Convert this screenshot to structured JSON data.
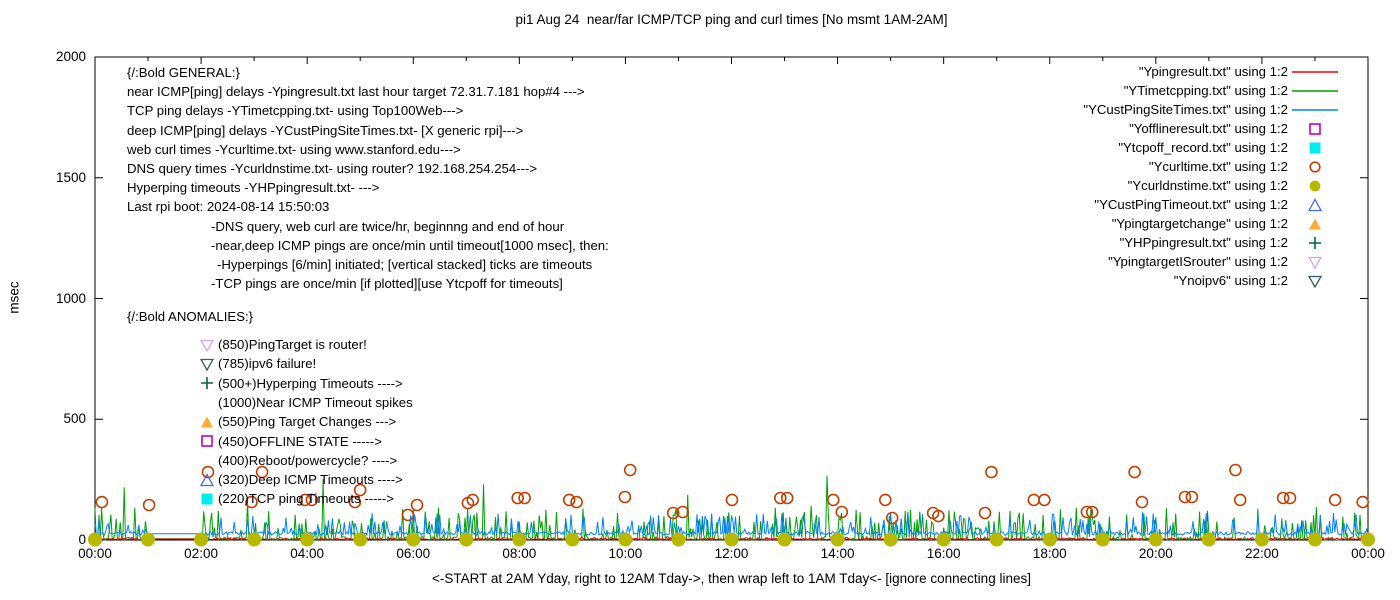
{
  "title": "pi1 Aug 24  near/far ICMP/TCP ping and curl times [No msmt 1AM-2AM]",
  "axes": {
    "y_label": "msec",
    "x_label": "<-START at 2AM Yday, right to 12AM Tday->, then wrap left to 1AM Tday<- [ignore connecting lines]",
    "y_ticks": [
      0,
      500,
      1000,
      1500,
      2000
    ],
    "x_tick_labels": [
      "00:00",
      "02:00",
      "04:00",
      "06:00",
      "08:00",
      "10:00",
      "12:00",
      "14:00",
      "16:00",
      "18:00",
      "20:00",
      "22:00",
      "00:00"
    ],
    "x_hours": 24,
    "y_max": 2000
  },
  "legend": [
    {
      "label": "\"Ypingresult.txt\" using 1:2",
      "marker": "line",
      "color": "#ff0000"
    },
    {
      "label": "\"YTimetcpping.txt\" using 1:2",
      "marker": "line",
      "color": "#00a000"
    },
    {
      "label": "\"YCustPingSiteTimes.txt\" using 1:2",
      "marker": "line",
      "color": "#0080ff"
    },
    {
      "label": "\"Yofflineresult.txt\" using 1:2",
      "marker": "square-open",
      "color": "#c000c0"
    },
    {
      "label": "\"Ytcpoff_record.txt\" using 1:2",
      "marker": "square-filled",
      "color": "#00eeee"
    },
    {
      "label": "\"Ycurltime.txt\" using 1:2",
      "marker": "circle-open",
      "color": "#c04000"
    },
    {
      "label": "\"Ycurldnstime.txt\" using 1:2",
      "marker": "circle-filled",
      "color": "#b8b800"
    },
    {
      "label": "\"YCustPingTimeout.txt\" using 1:2",
      "marker": "tri-up-open",
      "color": "#4169e1"
    },
    {
      "label": "\"Ypingtargetchange\" using 1:2",
      "marker": "tri-up-filled",
      "color": "#ffaa33"
    },
    {
      "label": "\"YHPpingresult.txt\" using 1:2",
      "marker": "plus",
      "color": "#006644"
    },
    {
      "label": "\"YpingtargetISrouter\" using 1:2",
      "marker": "tri-down-open",
      "color": "#cda4f0"
    },
    {
      "label": "\"Ynoipv6\" using 1:2",
      "marker": "tri-down-open",
      "color": "#35566b"
    }
  ],
  "annotations": {
    "general": {
      "lines": [
        {
          "text": "{/:Bold GENERAL:}",
          "indent": 0
        },
        {
          "text": "near ICMP[ping] delays -Ypingresult.txt last hour target 72.31.7.181 hop#4 --->",
          "indent": 0
        },
        {
          "text": "TCP ping delays -YTimetcpping.txt- using Top100Web--->",
          "indent": 0
        },
        {
          "text": "deep ICMP[ping] delays -YCustPingSiteTimes.txt- [X generic rpi]--->",
          "indent": 0
        },
        {
          "text": "web curl times -Ycurltime.txt- using www.stanford.edu--->",
          "indent": 0
        },
        {
          "text": "DNS query times -Ycurldnstime.txt- using router? 192.168.254.254--->",
          "indent": 0
        },
        {
          "text": "Hyperping timeouts -YHPpingresult.txt- --->",
          "indent": 0
        },
        {
          "text": "Last rpi boot: 2024-08-14 15:50:03",
          "indent": 0
        },
        {
          "text": "-DNS query, web curl are twice/hr, beginnng and end of hour",
          "indent": 1
        },
        {
          "text": "-near,deep ICMP pings are once/min until timeout[1000 msec], then:",
          "indent": 1
        },
        {
          "text": "-Hyperpings [6/min] initiated; [vertical stacked] ticks are timeouts",
          "indent": 2
        },
        {
          "text": "-TCP pings are once/min [if plotted][use Ytcpoff for timeouts]",
          "indent": 1
        }
      ]
    },
    "anomalies": {
      "title": "{/:Bold ANOMALIES:}",
      "items": [
        {
          "marker": "tri-down-open",
          "color": "#cda4f0",
          "text": "(850)PingTarget is router!"
        },
        {
          "marker": "tri-down-open",
          "color": "#35566b",
          "text": "(785)ipv6 failure!"
        },
        {
          "marker": "plus",
          "color": "#006644",
          "text": "(500+)Hyperping Timeouts ---->"
        },
        {
          "marker": "",
          "color": "",
          "text": "(1000)Near ICMP Timeout spikes"
        },
        {
          "marker": "tri-up-filled",
          "color": "#ffaa33",
          "text": "(550)Ping Target Changes --->"
        },
        {
          "marker": "square-open",
          "color": "#c000c0",
          "text": "(450)OFFLINE STATE ----->"
        },
        {
          "marker": "",
          "color": "",
          "text": "(400)Reboot/powercycle? ---->"
        },
        {
          "marker": "tri-up-open",
          "color": "#4169e1",
          "text": "(320)Deep ICMP Timeouts ---->"
        },
        {
          "marker": "square-filled",
          "color": "#00eeee",
          "text": "(220)TCP ping Timeouts ----->"
        }
      ]
    }
  },
  "chart_data": {
    "type": "line+scatter",
    "x_range_hours": [
      0,
      24
    ],
    "y_range_msec": [
      0,
      2000
    ],
    "no_measurement_gap_hours": [
      1,
      2
    ],
    "series": [
      {
        "name": "Ypingresult.txt",
        "type": "noise-line",
        "color": "#ff0000",
        "z": 3,
        "base": 4,
        "jitter": 2.5,
        "spike_prob": 0.02,
        "spike_max": 12,
        "gap_value": 4,
        "step_min": 1.6,
        "seed": 11
      },
      {
        "name": "YTimetcpping.txt",
        "type": "noise-line",
        "color": "#00a000",
        "z": 1,
        "base": 5,
        "jitter": 9,
        "spike_prob": 0.3,
        "spike_max": 130,
        "rare_prob": 0.008,
        "rare_max": 300,
        "gap_value": 5,
        "step_min": 1.5,
        "seed": 7
      },
      {
        "name": "YCustPingSiteTimes.txt",
        "type": "noise-line",
        "color": "#0080ff",
        "z": 2,
        "base": 27,
        "jitter": 7,
        "spike_prob": 0.25,
        "spike_max": 85,
        "rare_prob": 0.003,
        "rare_max": 120,
        "gap_value": 26,
        "step_min": 1.5,
        "seed": 3
      },
      {
        "name": "Ycurltime.txt",
        "type": "scatter",
        "marker": "circle-open",
        "color": "#c04000",
        "z": 5,
        "points": [
          [
            0.13,
            157
          ],
          [
            1.02,
            145
          ],
          [
            2.13,
            281
          ],
          [
            2.95,
            157
          ],
          [
            3.15,
            281
          ],
          [
            3.96,
            166
          ],
          [
            4.09,
            166
          ],
          [
            4.9,
            157
          ],
          [
            5.0,
            207
          ],
          [
            5.9,
            104
          ],
          [
            6.07,
            145
          ],
          [
            7.03,
            153
          ],
          [
            7.12,
            166
          ],
          [
            7.97,
            174
          ],
          [
            8.1,
            174
          ],
          [
            8.94,
            166
          ],
          [
            9.08,
            157
          ],
          [
            9.99,
            178
          ],
          [
            10.09,
            290
          ],
          [
            10.9,
            112
          ],
          [
            11.08,
            116
          ],
          [
            12.01,
            166
          ],
          [
            12.92,
            174
          ],
          [
            13.05,
            174
          ],
          [
            13.92,
            166
          ],
          [
            14.08,
            116
          ],
          [
            14.9,
            166
          ],
          [
            15.03,
            91
          ],
          [
            15.8,
            112
          ],
          [
            15.9,
            99
          ],
          [
            16.78,
            112
          ],
          [
            16.9,
            281
          ],
          [
            17.7,
            166
          ],
          [
            17.9,
            166
          ],
          [
            18.7,
            116
          ],
          [
            18.8,
            116
          ],
          [
            19.6,
            281
          ],
          [
            19.74,
            157
          ],
          [
            20.55,
            178
          ],
          [
            20.68,
            178
          ],
          [
            21.5,
            290
          ],
          [
            21.59,
            166
          ],
          [
            22.4,
            174
          ],
          [
            22.53,
            174
          ],
          [
            23.38,
            166
          ],
          [
            23.9,
            157
          ]
        ]
      },
      {
        "name": "Ycurldnstime.txt",
        "type": "scatter",
        "marker": "circle-filled",
        "color": "#b8b800",
        "z": 4,
        "points": [
          [
            0,
            2
          ],
          [
            1,
            2
          ],
          [
            2,
            2
          ],
          [
            3,
            2
          ],
          [
            4,
            2
          ],
          [
            5,
            2
          ],
          [
            6,
            2
          ],
          [
            7,
            2
          ],
          [
            8,
            2
          ],
          [
            9,
            2
          ],
          [
            10,
            2
          ],
          [
            11,
            2
          ],
          [
            12,
            2
          ],
          [
            13,
            2
          ],
          [
            14,
            2
          ],
          [
            15,
            2
          ],
          [
            16,
            2
          ],
          [
            17,
            2
          ],
          [
            18,
            2
          ],
          [
            19,
            2
          ],
          [
            20,
            2
          ],
          [
            21,
            2
          ],
          [
            22,
            2
          ],
          [
            23,
            2
          ],
          [
            24,
            2
          ]
        ]
      }
    ]
  }
}
